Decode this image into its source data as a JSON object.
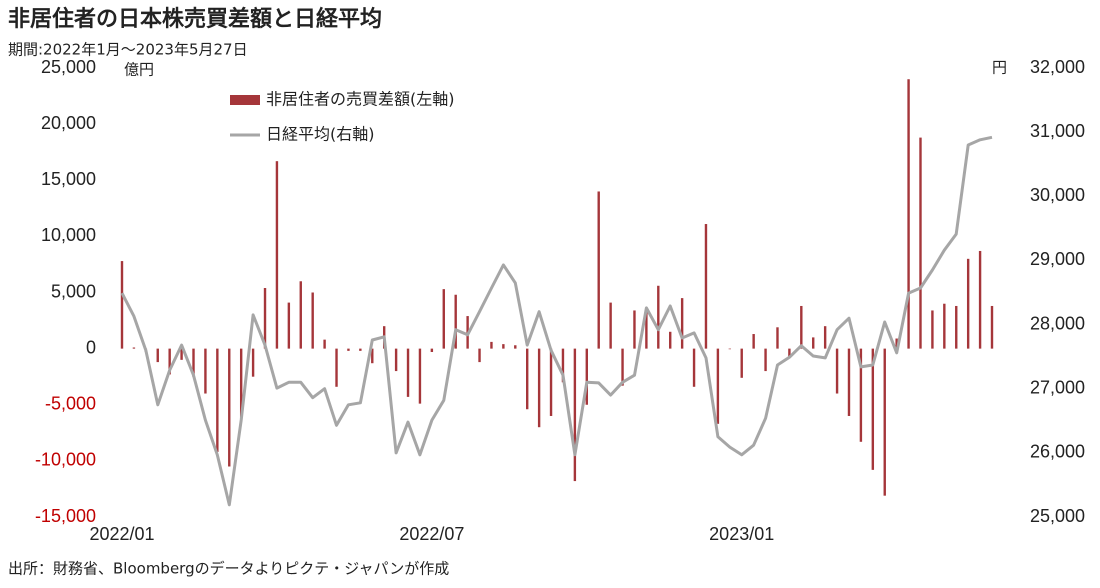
{
  "chart_data": {
    "type": "bar",
    "title": "非居住者の日本株売買差額と日経平均",
    "subtitle": "期間:2022年1月～2023年5月27日",
    "y_label": "億円",
    "y2_label": "円",
    "source": "出所：財務省、Bloombergのデータよりピクテ・ジャパンが作成",
    "legend": "upper left",
    "negative_tick_color": "#c00000",
    "categories": [
      "2022/01",
      null,
      null,
      null,
      null,
      null,
      null,
      null,
      null,
      null,
      null,
      null,
      null,
      null,
      null,
      null,
      null,
      null,
      null,
      null,
      null,
      null,
      null,
      null,
      null,
      null,
      "2022/07",
      null,
      null,
      null,
      null,
      null,
      null,
      null,
      null,
      null,
      null,
      null,
      null,
      null,
      null,
      null,
      null,
      null,
      null,
      null,
      null,
      null,
      null,
      null,
      null,
      null,
      "2023/01",
      null,
      null,
      null,
      null,
      null,
      null,
      null,
      null,
      null,
      null,
      null,
      null,
      null,
      null,
      null,
      null,
      null,
      null,
      null,
      null,
      null
    ],
    "series": [
      {
        "name": "非居住者の売買差額(左軸)",
        "type": "bar",
        "color": "#a5363a",
        "values": [
          7800,
          100,
          -300,
          -1200,
          -2300,
          -1000,
          -2500,
          -4000,
          -9200,
          -10500,
          -6200,
          -2500,
          5400,
          16700,
          4100,
          6000,
          5000,
          800,
          -3400,
          -200,
          -200,
          -1300,
          2000,
          -2000,
          -4300,
          -4900,
          -300,
          5300,
          4800,
          2900,
          -1200,
          600,
          400,
          300,
          -5400,
          -7000,
          -6000,
          -3000,
          -11800,
          -5000,
          14000,
          4100,
          -3300,
          3400,
          3400,
          5600,
          1500,
          4500,
          -3400,
          11100,
          -6700,
          0,
          -2600,
          1300,
          -2000,
          1900,
          -800,
          3800,
          1000,
          2000,
          -4000,
          -6000,
          -8300,
          -10800,
          -13100,
          900,
          24000,
          18800,
          3400,
          4000,
          3800,
          8000,
          8700,
          3800
        ]
      },
      {
        "name": "日経平均(右軸)",
        "type": "line",
        "axis": "y2",
        "color": "#a6a6a6",
        "values": [
          28490,
          28130,
          27600,
          26750,
          27290,
          27680,
          27210,
          26510,
          25970,
          25190,
          26510,
          28150,
          27680,
          27010,
          27100,
          27100,
          26860,
          27000,
          26430,
          26750,
          26780,
          27760,
          27810,
          26000,
          26480,
          25970,
          26510,
          26820,
          27920,
          27840,
          28200,
          28570,
          28930,
          28650,
          27680,
          28200,
          27600,
          27210,
          25970,
          27100,
          27090,
          26900,
          27100,
          27210,
          28260,
          27920,
          28290,
          27790,
          27870,
          27480,
          26250,
          26090,
          25970,
          26120,
          26540,
          27370,
          27490,
          27670,
          27510,
          27480,
          27920,
          28100,
          27340,
          27370,
          28040,
          27560,
          28490,
          28570,
          28850,
          29160,
          29410,
          30800,
          30880,
          30920
        ]
      }
    ],
    "ylim": [
      -15000,
      25000
    ],
    "yticks": [
      {
        "value": -15000,
        "label": "-15,000"
      },
      {
        "value": -10000,
        "label": "-10,000"
      },
      {
        "value": -5000,
        "label": "-5,000"
      },
      0,
      {
        "value": 5000,
        "label": "5,000"
      },
      {
        "value": 10000,
        "label": "10,000"
      },
      {
        "value": 15000,
        "label": "15,000"
      },
      {
        "value": 20000,
        "label": "20,000"
      },
      {
        "value": 25000,
        "label": "25,000"
      }
    ],
    "y2lim": [
      25000,
      32000
    ],
    "y2ticks": [
      {
        "value": 25000,
        "label": "25,000"
      },
      {
        "value": 26000,
        "label": "26,000"
      },
      {
        "value": 27000,
        "label": "27,000"
      },
      {
        "value": 28000,
        "label": "28,000"
      },
      {
        "value": 29000,
        "label": "29,000"
      },
      {
        "value": 30000,
        "label": "30,000"
      },
      {
        "value": 31000,
        "label": "31,000"
      },
      {
        "value": 32000,
        "label": "32,000"
      }
    ]
  }
}
